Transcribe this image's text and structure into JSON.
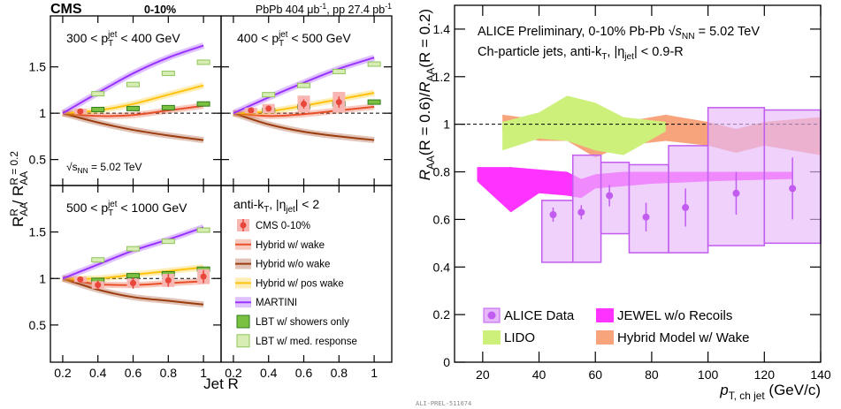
{
  "cms": {
    "experiment": "CMS",
    "centrality": "0-10%",
    "lumi": [
      "PbPb 404 μb",
      "-1",
      ", pp 27.4 pb",
      "-1"
    ],
    "xlabel": "Jet R",
    "ylabel": [
      "R",
      "AA",
      "R",
      " / R",
      "AA",
      "R = 0.2"
    ],
    "legend_title": [
      "anti-k",
      "T",
      ", |η",
      "jet",
      "| < 2"
    ]
  },
  "watermark": "ALI-PREL-511674",
  "chart_data": [
    {
      "type": "line",
      "label": [
        "300 < p",
        "T",
        "jet",
        " < 400 GeV"
      ],
      "annotation": [
        "√",
        "s",
        "NN",
        " = 5.02 TeV"
      ],
      "xlim": [
        0.13,
        1.1
      ],
      "xticks": [
        0.2,
        0.4,
        0.6,
        0.8,
        1
      ],
      "ylim": [
        0.22,
        2.05
      ],
      "yticks": [
        0.5,
        1,
        1.5
      ],
      "reference_line": 1,
      "series": [
        {
          "name": "CMS 0-10%",
          "kind": "points",
          "color": "#e8463a",
          "syst_color": "#f7b6b1",
          "x": [
            0.3
          ],
          "values": [
            1.02
          ],
          "errors": [
            0.02
          ],
          "syst": [
            0.03
          ]
        },
        {
          "name": "Hybrid w/ wake",
          "kind": "line",
          "color": "#e8502a",
          "x": [
            0.2,
            0.4,
            0.6,
            0.8,
            1.0
          ],
          "values": [
            1,
            0.97,
            0.98,
            1.03,
            1.08
          ]
        },
        {
          "name": "Hybrid w/o wake",
          "kind": "line",
          "color": "#9c3d10",
          "x": [
            0.2,
            0.4,
            0.6,
            0.8,
            1.0
          ],
          "values": [
            1,
            0.9,
            0.82,
            0.76,
            0.71
          ]
        },
        {
          "name": "Hybrid w/ pos wake",
          "kind": "line",
          "color": "#ffc20e",
          "x": [
            0.2,
            0.4,
            0.6,
            0.8,
            1.0
          ],
          "values": [
            1,
            1.03,
            1.1,
            1.2,
            1.3
          ]
        },
        {
          "name": "MARTINI",
          "kind": "line",
          "color": "#9933ff",
          "x": [
            0.2,
            0.4,
            0.6,
            0.8,
            1.0
          ],
          "values": [
            1,
            1.22,
            1.43,
            1.6,
            1.73
          ]
        },
        {
          "name": "LBT w/ showers only",
          "kind": "boxes",
          "color": "#7ac142",
          "edgecolor": "#2f7d1c",
          "x": [
            0.4,
            0.6,
            0.8,
            1.0
          ],
          "values": [
            1.04,
            1.05,
            1.06,
            1.1
          ]
        },
        {
          "name": "LBT w/ med. response",
          "kind": "boxes",
          "color": "#d7edb4",
          "edgecolor": "#8fc45a",
          "x": [
            0.4,
            0.6,
            0.8,
            1.0
          ],
          "values": [
            1.21,
            1.31,
            1.43,
            1.55
          ]
        }
      ]
    },
    {
      "type": "line",
      "label": [
        "400 < p",
        "T",
        "jet",
        " < 500 GeV"
      ],
      "xlim": [
        0.13,
        1.1
      ],
      "xticks": [
        0.2,
        0.4,
        0.6,
        0.8,
        1
      ],
      "ylim": [
        0.22,
        2.05
      ],
      "yticks": [
        0.5,
        1,
        1.5
      ],
      "reference_line": 1,
      "series": [
        {
          "name": "CMS 0-10%",
          "kind": "points",
          "color": "#e8463a",
          "syst_color": "#f7b6b1",
          "x": [
            0.3,
            0.4,
            0.6,
            0.8
          ],
          "values": [
            1.03,
            1.05,
            1.1,
            1.12
          ],
          "errors": [
            0.02,
            0.03,
            0.05,
            0.06
          ],
          "syst": [
            0.03,
            0.05,
            0.09,
            0.11
          ]
        },
        {
          "name": "Hybrid w/ wake",
          "kind": "line",
          "color": "#e8502a",
          "x": [
            0.2,
            0.4,
            0.6,
            0.8,
            1.0
          ],
          "values": [
            1,
            0.97,
            0.99,
            1.03,
            1.07
          ]
        },
        {
          "name": "Hybrid w/o wake",
          "kind": "line",
          "color": "#9c3d10",
          "x": [
            0.2,
            0.4,
            0.6,
            0.8,
            1.0
          ],
          "values": [
            1,
            0.88,
            0.8,
            0.75,
            0.71
          ]
        },
        {
          "name": "Hybrid w/ pos wake",
          "kind": "line",
          "color": "#ffc20e",
          "x": [
            0.2,
            0.4,
            0.6,
            0.8,
            1.0
          ],
          "values": [
            1,
            1.02,
            1.08,
            1.15,
            1.22
          ]
        },
        {
          "name": "MARTINI",
          "kind": "line",
          "color": "#9933ff",
          "x": [
            0.2,
            0.4,
            0.6,
            0.8,
            1.0
          ],
          "values": [
            1,
            1.17,
            1.33,
            1.48,
            1.6
          ]
        },
        {
          "name": "LBT w/ showers only",
          "kind": "boxes",
          "color": "#7ac142",
          "edgecolor": "#2f7d1c",
          "x": [
            0.4,
            0.6,
            0.8,
            1.0
          ],
          "values": [
            1.03,
            1.07,
            1.1,
            1.12
          ]
        },
        {
          "name": "LBT w/ med. response",
          "kind": "boxes",
          "color": "#d7edb4",
          "edgecolor": "#8fc45a",
          "x": [
            0.4,
            0.6,
            0.8,
            1.0
          ],
          "values": [
            1.2,
            1.3,
            1.45,
            1.53
          ]
        }
      ]
    },
    {
      "type": "line",
      "label": [
        "500 < p",
        "T",
        "jet",
        " < 1000 GeV"
      ],
      "xlim": [
        0.13,
        1.1
      ],
      "xticks": [
        0.2,
        0.4,
        0.6,
        0.8,
        1
      ],
      "ylim": [
        0.1,
        2.0
      ],
      "yticks": [
        0.5,
        1,
        1.5
      ],
      "reference_line": 1,
      "series": [
        {
          "name": "CMS 0-10%",
          "kind": "points",
          "color": "#e8463a",
          "syst_color": "#f7b6b1",
          "x": [
            0.3,
            0.4,
            0.6,
            0.8,
            1.0
          ],
          "values": [
            0.99,
            0.93,
            0.95,
            0.98,
            1.02
          ],
          "errors": [
            0.03,
            0.05,
            0.06,
            0.07,
            0.07
          ],
          "syst": [
            0.03,
            0.04,
            0.05,
            0.07,
            0.08
          ]
        },
        {
          "name": "Hybrid w/ wake",
          "kind": "line",
          "color": "#e8502a",
          "x": [
            0.2,
            0.4,
            0.6,
            0.8,
            1.0
          ],
          "values": [
            1,
            0.94,
            0.93,
            0.95,
            0.97
          ]
        },
        {
          "name": "Hybrid w/o wake",
          "kind": "line",
          "color": "#9c3d10",
          "x": [
            0.2,
            0.4,
            0.6,
            0.8,
            1.0
          ],
          "values": [
            1,
            0.88,
            0.8,
            0.76,
            0.72
          ]
        },
        {
          "name": "Hybrid w/ pos wake",
          "kind": "line",
          "color": "#ffc20e",
          "x": [
            0.2,
            0.4,
            0.6,
            0.8,
            1.0
          ],
          "values": [
            1,
            1.0,
            1.04,
            1.08,
            1.12
          ]
        },
        {
          "name": "MARTINI",
          "kind": "line",
          "color": "#9933ff",
          "x": [
            0.2,
            0.4,
            0.6,
            0.8,
            1.0
          ],
          "values": [
            1,
            1.15,
            1.3,
            1.42,
            1.55
          ]
        },
        {
          "name": "LBT w/ showers only",
          "kind": "boxes",
          "color": "#7ac142",
          "edgecolor": "#2f7d1c",
          "x": [
            0.4,
            0.6,
            0.8,
            1.0
          ],
          "values": [
            0.98,
            1.03,
            1.05,
            1.1
          ]
        },
        {
          "name": "LBT w/ med. response",
          "kind": "boxes",
          "color": "#d7edb4",
          "edgecolor": "#8fc45a",
          "x": [
            0.4,
            0.6,
            0.8,
            1.0
          ],
          "values": [
            1.2,
            1.32,
            1.4,
            1.52
          ]
        }
      ]
    },
    {
      "type": "band",
      "title_lines": [
        [
          "ALICE Preliminary, 0-10% Pb-Pb ",
          "√",
          "s",
          "NN",
          " = 5.02 TeV"
        ],
        [
          "Ch-particle jets, anti-k",
          "T",
          ", |η",
          "jet",
          "| < 0.9-R"
        ]
      ],
      "xlabel": [
        "p",
        "T, ch jet",
        " (GeV/c)"
      ],
      "ylabel": [
        "R",
        "AA",
        "(R = 0.6)/",
        "R",
        "AA",
        "(R = 0.2)"
      ],
      "xlim": [
        10,
        140
      ],
      "xticks": [
        20,
        40,
        60,
        80,
        100,
        120,
        140
      ],
      "ylim": [
        0,
        1.5
      ],
      "yticks": [
        0,
        0.2,
        0.4,
        0.6,
        0.8,
        1,
        1.2,
        1.4
      ],
      "reference_line": 1,
      "series": [
        {
          "name": "ALICE Data",
          "kind": "points",
          "color": "#c25cf0",
          "syst_color": "#e6b8fa",
          "x": [
            45,
            55,
            65,
            78,
            92,
            110,
            130
          ],
          "values": [
            0.62,
            0.63,
            0.7,
            0.61,
            0.65,
            0.71,
            0.73
          ],
          "errors": [
            0.03,
            0.03,
            0.045,
            0.06,
            0.08,
            0.09,
            0.13
          ],
          "x_bins": [
            41,
            52,
            62,
            72,
            86,
            100,
            120,
            140
          ],
          "syst_low": [
            0.42,
            0.42,
            0.54,
            0.46,
            0.46,
            0.49,
            0.5
          ],
          "syst_high": [
            0.68,
            0.87,
            0.84,
            0.83,
            0.91,
            1.07,
            1.06
          ]
        },
        {
          "name": "JEWEL w/o Recoils",
          "kind": "band",
          "color": "#ff33ff",
          "x": [
            18,
            30,
            40,
            50,
            55,
            60,
            70,
            80,
            100,
            130
          ],
          "low": [
            0.76,
            0.63,
            0.71,
            0.7,
            0.69,
            0.73,
            0.74,
            0.75,
            0.76,
            0.77
          ],
          "high": [
            0.82,
            0.82,
            0.81,
            0.8,
            0.77,
            0.79,
            0.8,
            0.8,
            0.8,
            0.8
          ]
        },
        {
          "name": "LIDO",
          "kind": "band",
          "color": "#ccf07a",
          "x": [
            27,
            40,
            50,
            60,
            70,
            85
          ],
          "low": [
            0.89,
            0.94,
            0.93,
            0.89,
            0.87,
            0.97
          ],
          "high": [
            1.01,
            1.05,
            1.12,
            1.09,
            1.03,
            1.01
          ]
        },
        {
          "name": "Hybrid Model w/ Wake",
          "kind": "band",
          "color": "#f7a47c",
          "x": [
            27,
            40,
            50,
            60,
            70,
            85,
            100,
            110,
            120,
            140
          ],
          "low": [
            0.97,
            0.93,
            0.93,
            0.86,
            0.91,
            0.93,
            0.91,
            0.88,
            0.91,
            0.87
          ],
          "high": [
            1.04,
            1.02,
            1.04,
            0.98,
            1.01,
            1.04,
            1.01,
            0.98,
            1.01,
            1.03
          ]
        }
      ]
    }
  ]
}
